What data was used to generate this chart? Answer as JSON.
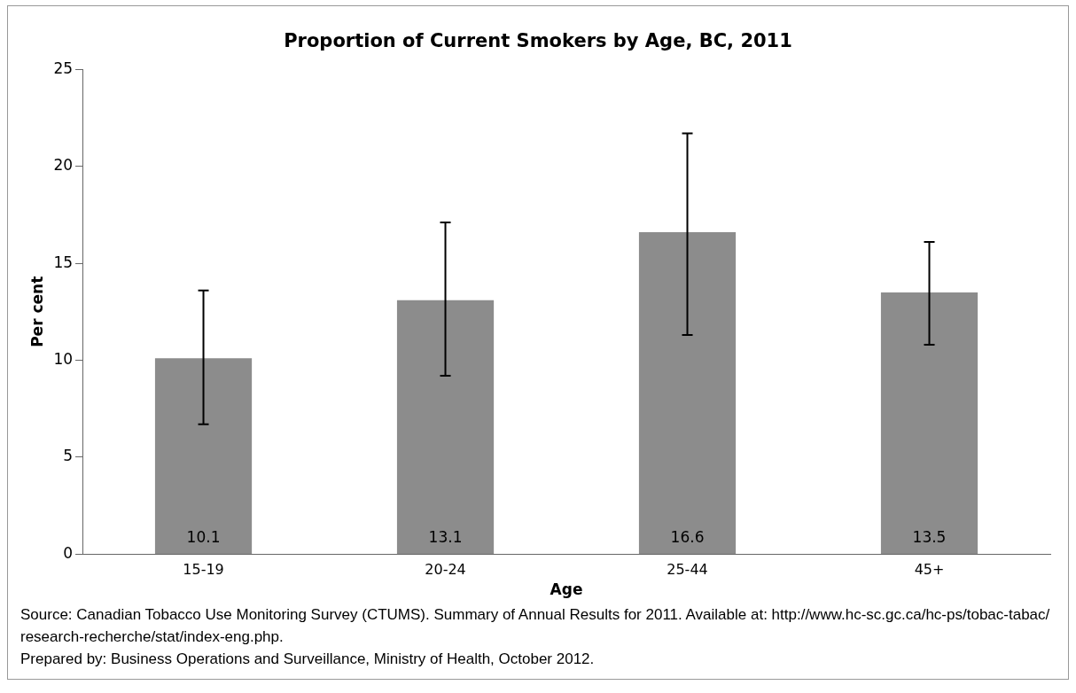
{
  "chart_data": {
    "type": "bar",
    "title": "Proportion of Current Smokers by Age, BC, 2011",
    "xlabel": "Age",
    "ylabel": "Per cent",
    "categories": [
      "15-19",
      "20-24",
      "25-44",
      "45+"
    ],
    "values": [
      10.1,
      13.1,
      16.6,
      13.5
    ],
    "errors": [
      [
        6.7,
        13.6
      ],
      [
        9.2,
        17.1
      ],
      [
        11.3,
        21.7
      ],
      [
        10.8,
        16.1
      ]
    ],
    "color": "#8c8c8c",
    "data_labels": true,
    "ylim": [
      0,
      25
    ],
    "yticks": [
      0,
      5,
      10,
      15,
      20,
      25
    ],
    "annotations": [
      "Source:  Canadian Tobacco Use Monitoring Survey (CTUMS).  Summary of Annual Results for 2011.  Available at:  http://www.hc-sc.gc.ca/hc-ps/tobac-tabac/ research-recherche/stat/index-eng.php.",
      "Prepared by:  Business Operations and Surveillance, Ministry of Health, October 2012."
    ]
  }
}
